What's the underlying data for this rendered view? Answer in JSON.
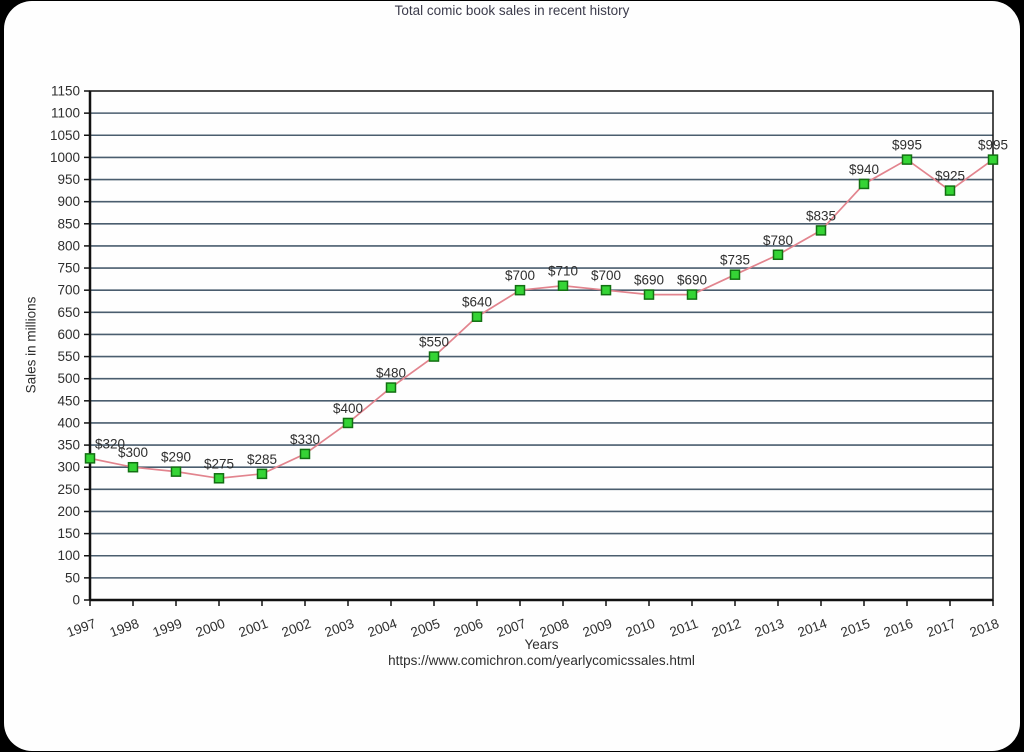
{
  "page": {
    "title": "Total comic book sales in recent history",
    "source_url": "https://www.comichron.com/yearlycomicssales.html"
  },
  "chart_data": {
    "type": "line",
    "title": "Total comic book sales in recent history",
    "xlabel": "Years",
    "ylabel": "Sales in millions",
    "source": "https://www.comichron.com/yearlycomicssales.html",
    "categories": [
      "1997",
      "1998",
      "1999",
      "2000",
      "2001",
      "2002",
      "2003",
      "2004",
      "2005",
      "2006",
      "2007",
      "2008",
      "2009",
      "2010",
      "2011",
      "2012",
      "2013",
      "2014",
      "2015",
      "2016",
      "2017",
      "2018"
    ],
    "values": [
      320,
      300,
      290,
      275,
      285,
      330,
      400,
      480,
      550,
      640,
      700,
      710,
      700,
      690,
      690,
      735,
      780,
      835,
      940,
      995,
      925,
      995
    ],
    "point_labels": [
      "$320",
      "$300",
      "$290",
      "$275",
      "$285",
      "$330",
      "$400",
      "$480",
      "$550",
      "$640",
      "$700",
      "$710",
      "$700",
      "$690",
      "$690",
      "$735",
      "$780",
      "$835",
      "$940",
      "$995",
      "$925",
      "$995"
    ],
    "ylim": [
      0,
      1150
    ],
    "ytick_step": 50,
    "ytick_labels": [
      "0",
      "50",
      "100",
      "150",
      "200",
      "250",
      "300",
      "350",
      "400",
      "450",
      "500",
      "550",
      "600",
      "650",
      "700",
      "750",
      "800",
      "850",
      "900",
      "950",
      "1000",
      "1050",
      "1100",
      "1150"
    ],
    "grid": "horizontal",
    "legend": "none",
    "x_tick_label_rotation_deg": -20,
    "colors": {
      "line": "#e2848e",
      "marker_fill": "#35d435",
      "marker_border": "#127012",
      "gridline": "#4a5d6e",
      "axis": "#111111",
      "tick_text": "#2e2e2e",
      "title_text": "#3b3b4b",
      "background": "#fefefe",
      "frame": "#000000"
    }
  }
}
